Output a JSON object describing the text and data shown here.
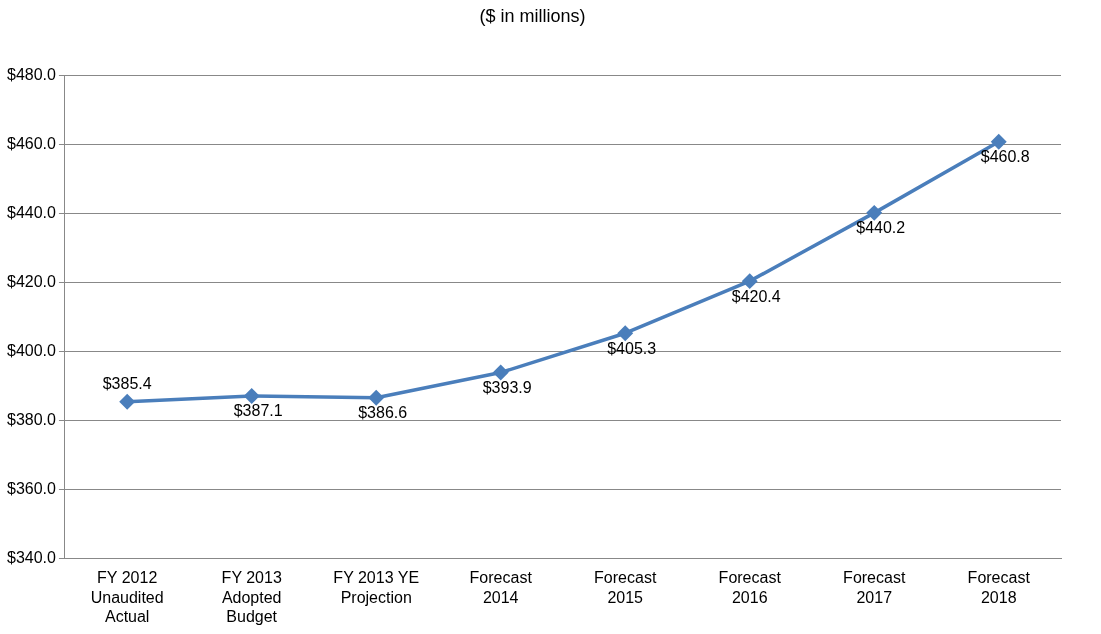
{
  "chart_data": {
    "type": "line",
    "title": "($ in millions)",
    "categories": [
      "FY 2012 Unaudited Actual",
      "FY 2013 Adopted Budget",
      "FY 2013 YE Projection",
      "Forecast 2014",
      "Forecast 2015",
      "Forecast 2016",
      "Forecast 2017",
      "Forecast 2018"
    ],
    "series": [
      {
        "color": "#4a7ebb",
        "values": [
          385.4,
          387.1,
          386.6,
          393.9,
          405.3,
          420.4,
          440.2,
          460.8
        ],
        "value_labels": [
          "$385.4",
          "$387.1",
          "$386.6",
          "$393.9",
          "$405.3",
          "$420.4",
          "$440.2",
          "$460.8"
        ]
      }
    ],
    "ylim": [
      340,
      480
    ],
    "yticks": [
      {
        "value": 340,
        "label": "$340.0"
      },
      {
        "value": 360,
        "label": "$360.0"
      },
      {
        "value": 380,
        "label": "$380.0"
      },
      {
        "value": 400,
        "label": "$400.0"
      },
      {
        "value": 420,
        "label": "$420.0"
      },
      {
        "value": 440,
        "label": "$440.0"
      },
      {
        "value": 460,
        "label": "$460.0"
      },
      {
        "value": 480,
        "label": "$480.0"
      }
    ],
    "grid": "y",
    "legend": false,
    "marker": "diamond",
    "line_style": "solid"
  }
}
